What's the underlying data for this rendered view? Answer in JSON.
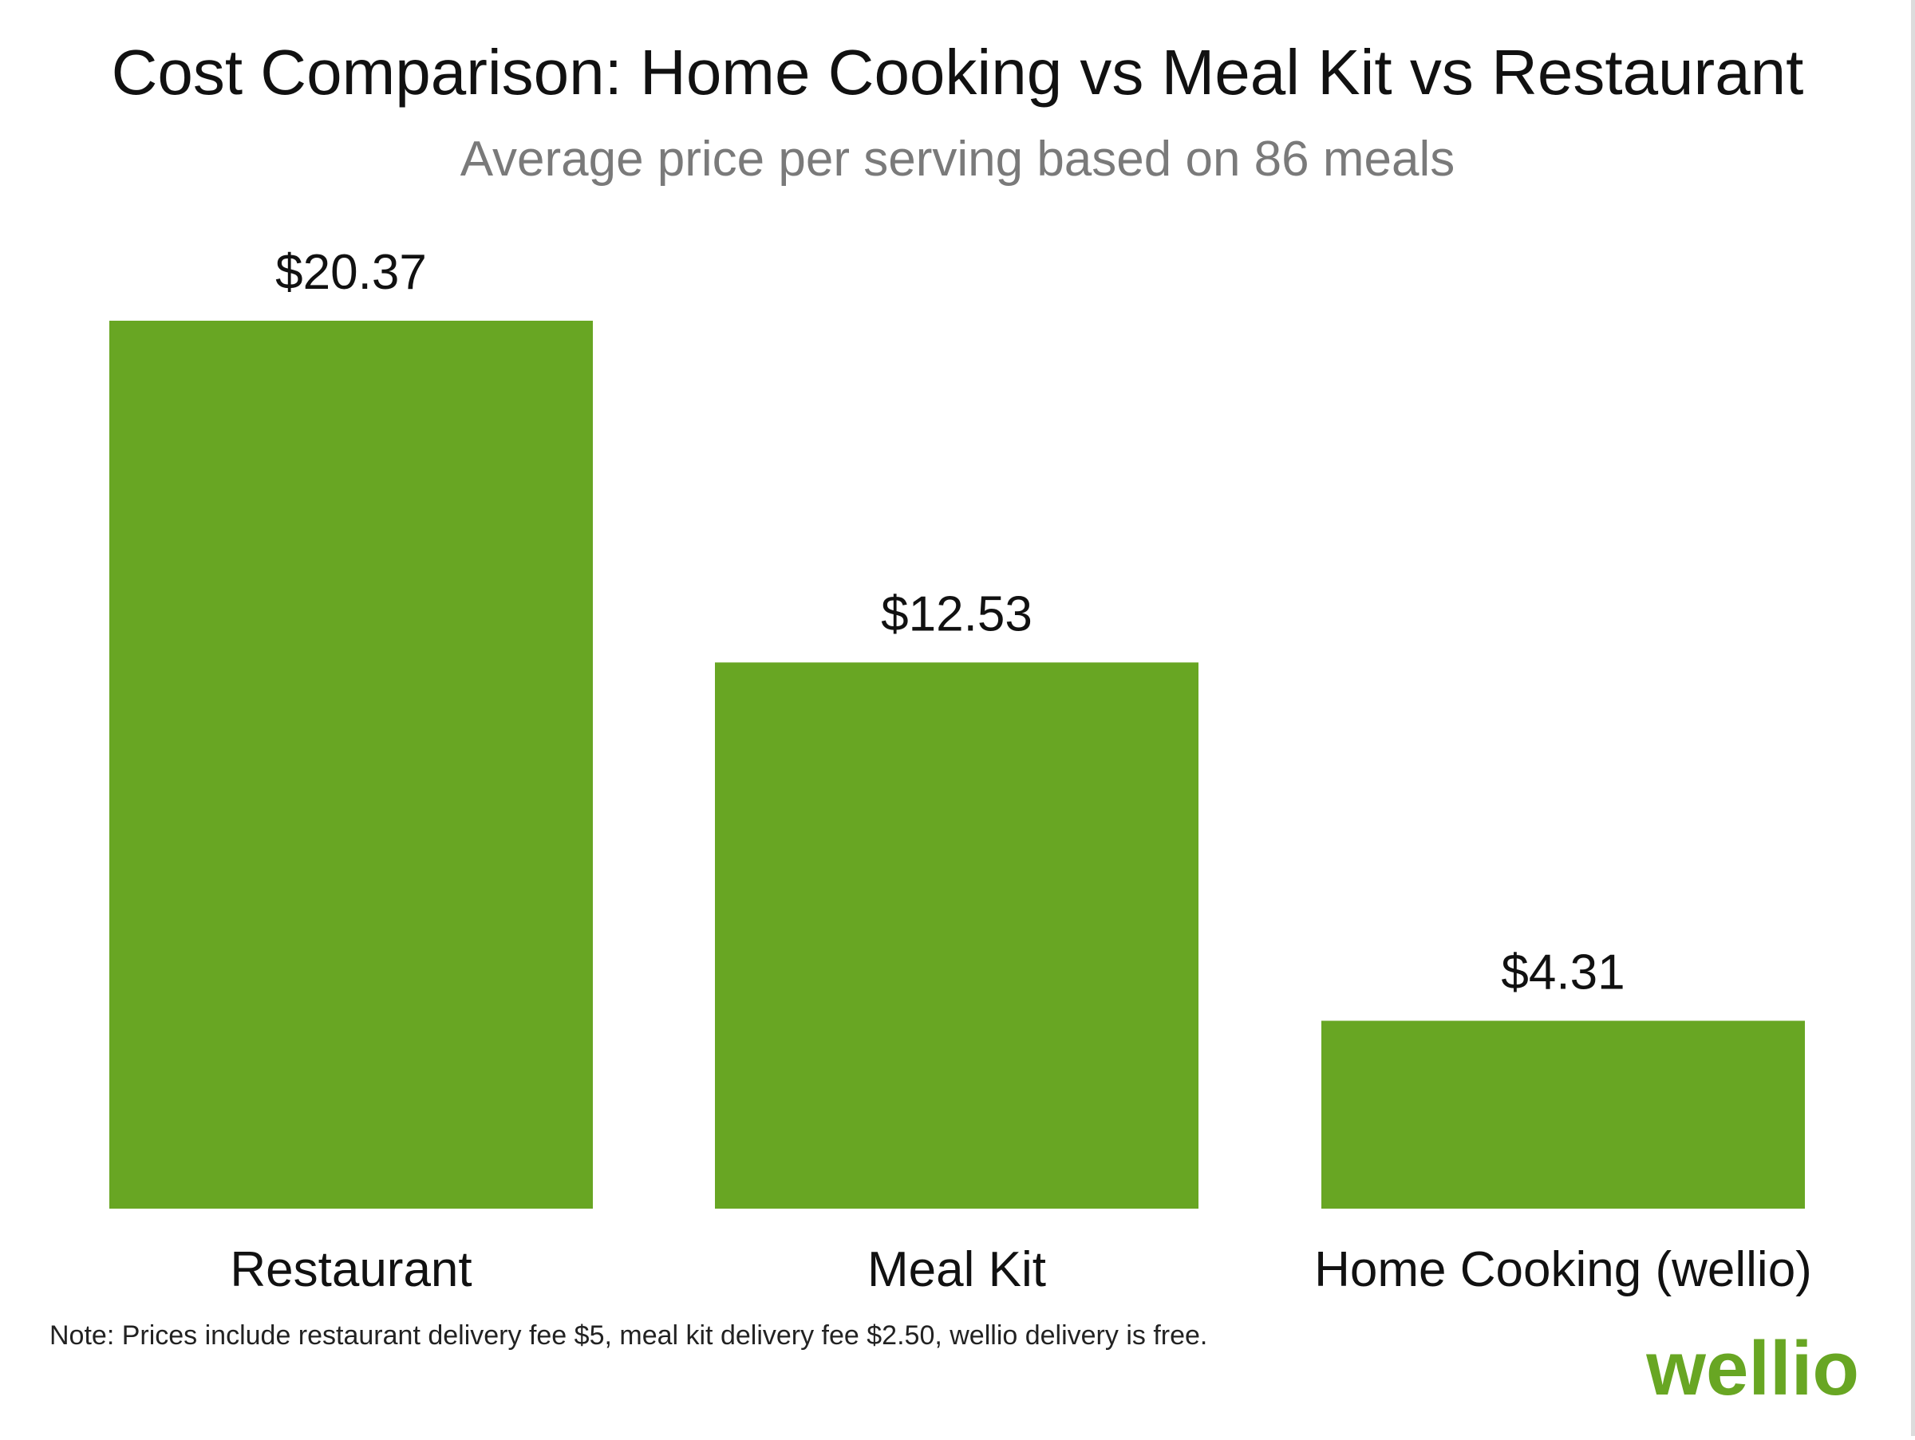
{
  "chart_data": {
    "type": "bar",
    "title": "Cost Comparison: Home Cooking vs Meal Kit vs Restaurant",
    "subtitle": "Average price per serving based on 86 meals",
    "categories": [
      "Restaurant",
      "Meal Kit",
      "Home Cooking (wellio)"
    ],
    "values": [
      20.37,
      12.53,
      4.31
    ],
    "value_labels": [
      "$20.37",
      "$12.53",
      "$4.31"
    ],
    "xlabel": "",
    "ylabel": "",
    "ylim": [
      0,
      20.37
    ],
    "grid": false,
    "bar_color": "#68a623"
  },
  "note": "Note: Prices include restaurant delivery fee $5, meal kit delivery fee $2.50, wellio delivery is free.",
  "brand": {
    "logo_text": "wellio",
    "color": "#68a623"
  },
  "colors": {
    "title": "#111111",
    "subtitle": "#7a7a7a",
    "label": "#111111",
    "note": "#222222"
  }
}
